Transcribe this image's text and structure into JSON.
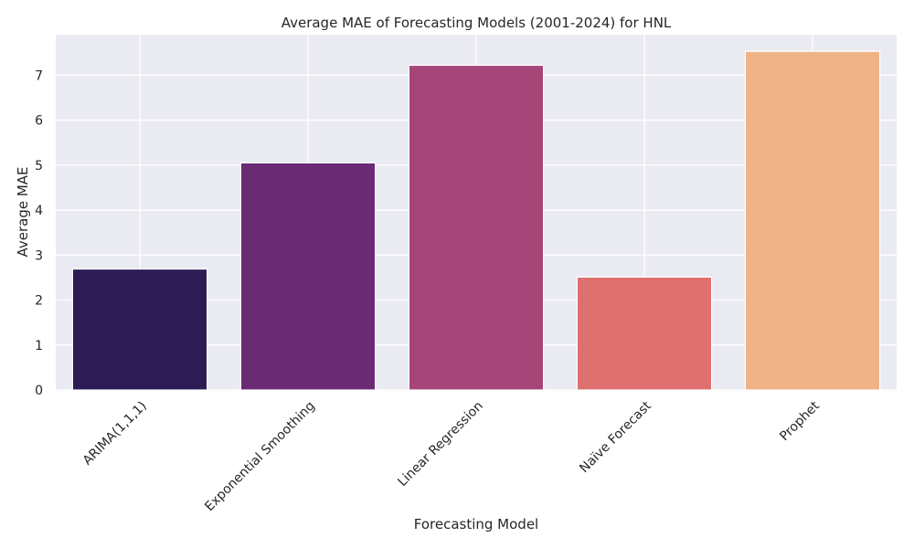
{
  "chart_data": {
    "type": "bar",
    "title": "Average MAE of Forecasting Models (2001-2024) for HNL",
    "xlabel": "Forecasting Model",
    "ylabel": "Average MAE",
    "categories": [
      "ARIMA(1,1,1)",
      "Exponential Smoothing",
      "Linear Regression",
      "Naïve Forecast",
      "Prophet"
    ],
    "values": [
      2.69,
      5.05,
      7.22,
      2.51,
      7.53
    ],
    "colors": [
      "#2d1b55",
      "#6a2a74",
      "#a64578",
      "#de7070",
      "#efb387"
    ],
    "ylim": [
      0,
      7.9
    ],
    "yticks": [
      "0",
      "1",
      "2",
      "3",
      "4",
      "5",
      "6",
      "7"
    ],
    "grid": true,
    "plot_background": "#eaeaf2"
  }
}
